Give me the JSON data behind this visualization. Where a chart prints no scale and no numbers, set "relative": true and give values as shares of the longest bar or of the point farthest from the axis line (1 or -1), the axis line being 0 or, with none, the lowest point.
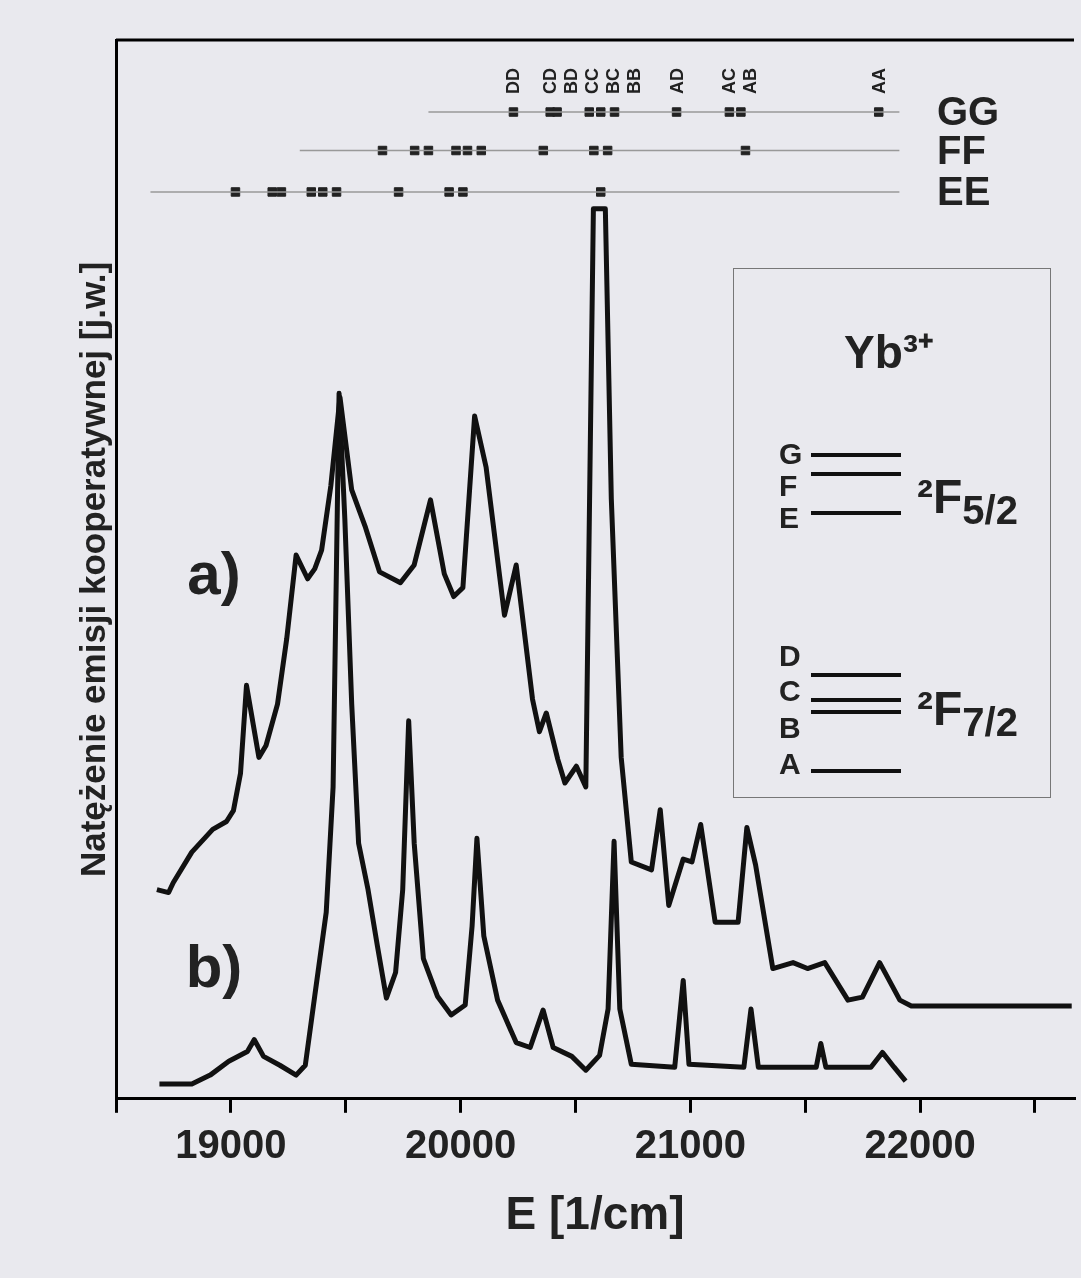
{
  "chart_data": {
    "type": "line",
    "relative": true,
    "xlabel": "E [1/cm]",
    "ylabel": "Natężenie emisji kooperatywnej [j.w.]",
    "xlim": [
      18500,
      22670
    ],
    "xticks": [
      {
        "value": 18500,
        "label": null
      },
      19000,
      {
        "value": 19500,
        "label": null
      },
      20000,
      {
        "value": 20500,
        "label": null
      },
      21000,
      {
        "value": 21500,
        "label": null
      },
      22000,
      {
        "value": 22500,
        "label": null
      }
    ],
    "grid": false,
    "legend": false,
    "marker": "none",
    "line_style": "solid",
    "series": [
      {
        "color": "#111111",
        "x": [
          18678,
          18729,
          18749,
          18830,
          18921,
          18981,
          19011,
          19042,
          19068,
          19122,
          19153,
          19203,
          19243,
          19284,
          19334,
          19365,
          19395,
          19435,
          19475,
          19526,
          19586,
          19647,
          19738,
          19798,
          19869,
          19929,
          19970,
          20010,
          20061,
          20111,
          20191,
          20242,
          20313,
          20343,
          20373,
          20423,
          20454,
          20504,
          20545,
          20578,
          20630,
          20656,
          20699,
          20743,
          20831,
          20869,
          20906,
          20969,
          21007,
          21045,
          21108,
          21208,
          21246,
          21284,
          21359,
          21447,
          21510,
          21585,
          21686,
          21749,
          21824,
          21912,
          21962,
          22660
        ],
        "values": [
          0.212,
          0.209,
          0.219,
          0.25,
          0.273,
          0.281,
          0.292,
          0.33,
          0.419,
          0.346,
          0.358,
          0.4,
          0.466,
          0.551,
          0.527,
          0.537,
          0.556,
          0.621,
          0.711,
          0.617,
          0.579,
          0.534,
          0.523,
          0.541,
          0.607,
          0.532,
          0.509,
          0.518,
          0.692,
          0.64,
          0.49,
          0.541,
          0.405,
          0.372,
          0.391,
          0.344,
          0.32,
          0.337,
          0.316,
          0.902,
          0.902,
          0.608,
          0.346,
          0.24,
          0.232,
          0.293,
          0.196,
          0.243,
          0.24,
          0.278,
          0.179,
          0.179,
          0.275,
          0.237,
          0.132,
          0.138,
          0.132,
          0.138,
          0.1,
          0.103,
          0.138,
          0.1,
          0.094,
          0.094
        ]
      },
      {
        "color": "#111111",
        "x": [
          18689,
          18830,
          18910,
          18991,
          19072,
          19102,
          19142,
          19213,
          19284,
          19324,
          19365,
          19415,
          19445,
          19471,
          19496,
          19526,
          19556,
          19597,
          19637,
          19677,
          19717,
          19748,
          19774,
          19798,
          19838,
          19899,
          19959,
          20020,
          20050,
          20071,
          20101,
          20161,
          20242,
          20303,
          20359,
          20403,
          20484,
          20545,
          20605,
          20642,
          20668,
          20693,
          20743,
          20932,
          20969,
          20994,
          21233,
          21264,
          21296,
          21548,
          21568,
          21590,
          21786,
          21836,
          21887,
          21937
        ],
        "values": [
          0.015,
          0.015,
          0.024,
          0.038,
          0.048,
          0.06,
          0.043,
          0.034,
          0.024,
          0.034,
          0.104,
          0.189,
          0.316,
          0.715,
          0.588,
          0.4,
          0.259,
          0.212,
          0.156,
          0.102,
          0.128,
          0.212,
          0.383,
          0.259,
          0.142,
          0.104,
          0.085,
          0.095,
          0.175,
          0.264,
          0.165,
          0.1,
          0.057,
          0.052,
          0.09,
          0.052,
          0.043,
          0.029,
          0.044,
          0.091,
          0.261,
          0.091,
          0.035,
          0.032,
          0.12,
          0.035,
          0.032,
          0.091,
          0.032,
          0.032,
          0.056,
          0.032,
          0.032,
          0.047,
          0.032,
          0.018
        ]
      },
      {
        "type": "line",
        "color": "#999999",
        "x": [
          19860,
          21910
        ],
        "values": [
          1,
          1
        ]
      },
      {
        "type": "line",
        "color": "#999999",
        "x": [
          19300,
          21910
        ],
        "values": [
          0.961,
          0.961
        ]
      },
      {
        "type": "line",
        "color": "#999999",
        "x": [
          18650,
          21910
        ],
        "values": [
          0.919,
          0.919
        ]
      },
      {
        "type": "scatter",
        "name": "GG",
        "marker": "square",
        "color": "#222222",
        "x": [
          20230,
          20390,
          20420,
          20560,
          20610,
          20670,
          20940,
          21170,
          21220,
          21820
        ],
        "values": [
          1,
          1,
          1,
          1,
          1,
          1,
          1,
          1,
          1,
          1
        ]
      },
      {
        "type": "scatter",
        "name": "FF",
        "marker": "square",
        "color": "#222222",
        "x": [
          19660,
          19800,
          19860,
          19980,
          20030,
          20090,
          20360,
          20580,
          20640,
          21240
        ],
        "values": [
          0.961,
          0.961,
          0.961,
          0.961,
          0.961,
          0.961,
          0.961,
          0.961,
          0.961,
          0.961
        ]
      },
      {
        "type": "scatter",
        "name": "EE",
        "marker": "square",
        "color": "#222222",
        "x": [
          19020,
          19180,
          19220,
          19350,
          19400,
          19460,
          19730,
          19950,
          20010,
          20610
        ],
        "values": [
          0.919,
          0.919,
          0.919,
          0.919,
          0.919,
          0.919,
          0.919,
          0.919,
          0.919,
          0.919
        ]
      }
    ],
    "annotations": [
      {
        "text": "DD",
        "x": 20230,
        "y": 1
      },
      {
        "text": "CD",
        "x": 20390,
        "y": 1
      },
      {
        "text": "BD",
        "x": 20420,
        "y": 1
      },
      {
        "text": "CC",
        "x": 20560,
        "y": 1
      },
      {
        "text": "BC",
        "x": 20610,
        "y": 1
      },
      {
        "text": "BB",
        "x": 20670,
        "y": 1
      },
      {
        "text": "AD",
        "x": 20940,
        "y": 1
      },
      {
        "text": "AC",
        "x": 21170,
        "y": 1
      },
      {
        "text": "AB",
        "x": 21220,
        "y": 1
      },
      {
        "text": "AA",
        "x": 21820,
        "y": 1
      },
      "a)",
      "b)",
      "Yb³⁺",
      "G",
      "F",
      "E",
      "²F$_{5/2}$",
      "D",
      "C",
      "B",
      "A",
      "²F$_{7/2}$"
    ]
  }
}
